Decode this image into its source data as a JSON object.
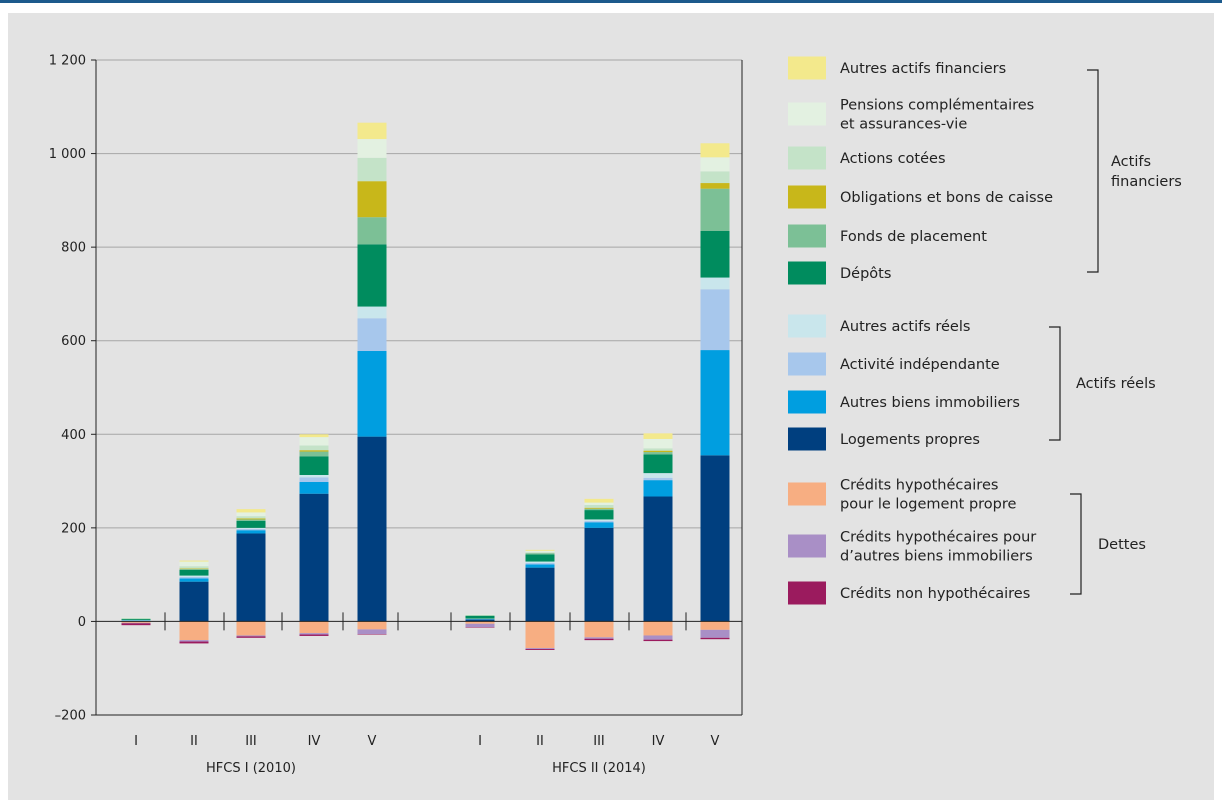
{
  "chart_data": {
    "type": "bar",
    "stacked": true,
    "grid": true,
    "legend_position": "right",
    "ylim": [
      -200,
      1200
    ],
    "yticks": [
      "1 200",
      "1 000",
      "800",
      "600",
      "400",
      "200",
      "0",
      "–200"
    ],
    "ytick_values": [
      1200,
      1000,
      800,
      600,
      400,
      200,
      0,
      -200
    ],
    "groups": [
      {
        "name": "HFCS I (2010)",
        "categories": [
          "I",
          "II",
          "III",
          "IV",
          "V"
        ]
      },
      {
        "name": "HFCS II (2014)",
        "categories": [
          "I",
          "II",
          "III",
          "IV",
          "V"
        ]
      }
    ],
    "series": [
      {
        "name": "Logements propres",
        "key": "log",
        "color": "#003f7f",
        "type": "asset",
        "values": [
          [
            1,
            85,
            188,
            273,
            395
          ],
          [
            4,
            115,
            200,
            267,
            355
          ]
        ]
      },
      {
        "name": "Autres biens immobiliers",
        "key": "abi",
        "color": "#009ee0",
        "type": "asset",
        "values": [
          [
            1,
            7,
            7,
            25,
            183
          ],
          [
            1,
            7,
            12,
            35,
            225
          ]
        ]
      },
      {
        "name": "Activité indépendante",
        "key": "act",
        "color": "#a7c7ec",
        "type": "asset",
        "values": [
          [
            0,
            3,
            3,
            10,
            70
          ],
          [
            0,
            3,
            3,
            5,
            130
          ]
        ]
      },
      {
        "name": "Autres actifs réels",
        "key": "aar",
        "color": "#c9e6ec",
        "type": "asset",
        "values": [
          [
            1,
            3,
            2,
            5,
            25
          ],
          [
            1,
            3,
            3,
            10,
            25
          ]
        ]
      },
      {
        "name": "Dépôts",
        "key": "dep",
        "color": "#008c5e",
        "type": "asset",
        "values": [
          [
            2,
            12,
            15,
            40,
            133
          ],
          [
            6,
            15,
            20,
            40,
            100
          ]
        ]
      },
      {
        "name": "Fonds de placement",
        "key": "fdp",
        "color": "#7cc096",
        "type": "asset",
        "values": [
          [
            1,
            2,
            3,
            10,
            58
          ],
          [
            1,
            3,
            3,
            5,
            90
          ]
        ]
      },
      {
        "name": "Obligations et bons de caisse",
        "key": "obl",
        "color": "#c8b71a",
        "type": "asset",
        "values": [
          [
            0,
            1,
            2,
            3,
            77
          ],
          [
            0,
            0,
            2,
            3,
            12
          ]
        ]
      },
      {
        "name": "Actions cotées",
        "key": "act_c",
        "color": "#c4e3c8",
        "type": "asset",
        "values": [
          [
            1,
            5,
            5,
            10,
            50
          ],
          [
            1,
            2,
            6,
            5,
            25
          ]
        ]
      },
      {
        "name": "Pensions complémentaires et assurances-vie",
        "key": "pen",
        "color": "#e3f1e1",
        "type": "asset",
        "values": [
          [
            1,
            10,
            8,
            18,
            40
          ],
          [
            1,
            3,
            5,
            20,
            30
          ]
        ]
      },
      {
        "name": "Autres actifs financiers",
        "key": "aaf",
        "color": "#f3e98c",
        "type": "asset",
        "values": [
          [
            0,
            2,
            7,
            6,
            35
          ],
          [
            0,
            2,
            8,
            12,
            30
          ]
        ]
      },
      {
        "name": "Crédits hypothécaires pour le logement propre",
        "key": "chl",
        "color": "#f7ae82",
        "type": "debt",
        "values": [
          [
            -3,
            -40,
            -30,
            -25,
            -17
          ],
          [
            -5,
            -57,
            -34,
            -30,
            -18
          ]
        ]
      },
      {
        "name": "Crédits hypothécaires pour d’autres biens immobiliers",
        "key": "cha",
        "color": "#a98fc6",
        "type": "debt",
        "values": [
          [
            -1,
            -3,
            -2,
            -3,
            -10
          ],
          [
            -7,
            -2,
            -3,
            -9,
            -17
          ]
        ]
      },
      {
        "name": "Crédits non hypothécaires",
        "key": "cnh",
        "color": "#9b1b5e",
        "type": "debt",
        "values": [
          [
            -4,
            -4,
            -3,
            -3,
            -1
          ],
          [
            -1,
            -2,
            -3,
            -3,
            -3
          ]
        ]
      }
    ],
    "legend": {
      "financial": {
        "label": [
          "Actifs",
          "financiers"
        ],
        "items": [
          {
            "label": [
              "Autres actifs financiers"
            ],
            "color": "#f3e98c"
          },
          {
            "label": [
              "Pensions complémentaires",
              "et assurances-vie"
            ],
            "color": "#e3f1e1"
          },
          {
            "label": [
              "Actions cotées"
            ],
            "color": "#c4e3c8"
          },
          {
            "label": [
              "Obligations et bons de caisse"
            ],
            "color": "#c8b71a"
          },
          {
            "label": [
              "Fonds de placement"
            ],
            "color": "#7cc096"
          },
          {
            "label": [
              "Dépôts"
            ],
            "color": "#008c5e"
          }
        ]
      },
      "real": {
        "label": [
          "Actifs réels"
        ],
        "items": [
          {
            "label": [
              "Autres actifs réels"
            ],
            "color": "#c9e6ec"
          },
          {
            "label": [
              "Activité indépendante"
            ],
            "color": "#a7c7ec"
          },
          {
            "label": [
              "Autres biens immobiliers"
            ],
            "color": "#009ee0"
          },
          {
            "label": [
              "Logements propres"
            ],
            "color": "#003f7f"
          }
        ]
      },
      "debts": {
        "label": [
          "Dettes"
        ],
        "items": [
          {
            "label": [
              "Crédits hypothécaires",
              "pour le logement propre"
            ],
            "color": "#f7ae82"
          },
          {
            "label": [
              "Crédits hypothécaires pour",
              "d’autres biens immobiliers"
            ],
            "color": "#a98fc6"
          },
          {
            "label": [
              "Crédits non hypothécaires"
            ],
            "color": "#9b1b5e"
          }
        ]
      }
    }
  }
}
